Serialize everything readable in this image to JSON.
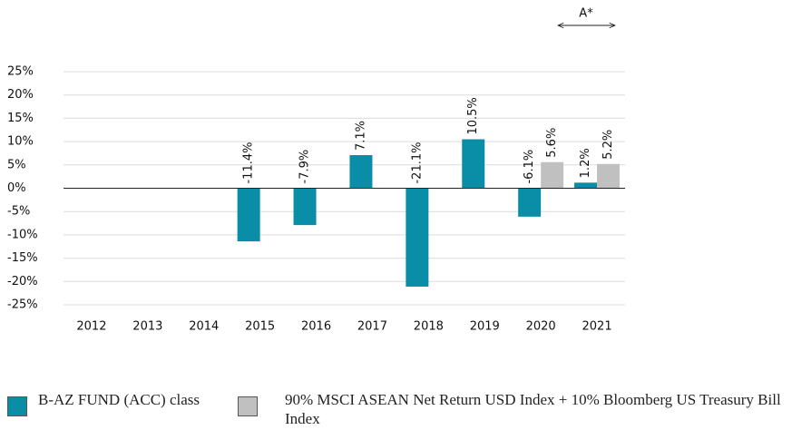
{
  "chart_data": {
    "type": "bar",
    "annotation": "A*",
    "categories": [
      "2012",
      "2013",
      "2014",
      "2015",
      "2016",
      "2017",
      "2018",
      "2019",
      "2020",
      "2021"
    ],
    "series": [
      {
        "name": "B-AZ FUND (ACC) class",
        "color": "#0a8ea8",
        "values": [
          null,
          null,
          null,
          -11.4,
          -7.9,
          7.1,
          -21.1,
          10.5,
          -6.1,
          1.2
        ],
        "value_labels": [
          null,
          null,
          null,
          "-11.4%",
          "-7.9%",
          "7.1%",
          "-21.1%",
          "10.5%",
          "-6.1%",
          "1.2%"
        ]
      },
      {
        "name": "90% MSCI ASEAN Net Return USD Index + 10% Bloomberg US Treasury Bill Index",
        "color": "#c0c0c0",
        "values": [
          null,
          null,
          null,
          null,
          null,
          null,
          null,
          null,
          5.6,
          5.2
        ],
        "value_labels": [
          null,
          null,
          null,
          null,
          null,
          null,
          null,
          null,
          "5.6%",
          "5.2%"
        ]
      }
    ],
    "ylim": [
      -25,
      25
    ],
    "yticks": [
      {
        "value": -25,
        "label": "-25%"
      },
      {
        "value": -20,
        "label": "-20%"
      },
      {
        "value": -15,
        "label": "-15%"
      },
      {
        "value": -10,
        "label": "-10%"
      },
      {
        "value": -5,
        "label": "-5%"
      },
      {
        "value": 0,
        "label": "0%"
      },
      {
        "value": 5,
        "label": "5%"
      },
      {
        "value": 10,
        "label": "10%"
      },
      {
        "value": 15,
        "label": "15%"
      },
      {
        "value": 20,
        "label": "20%"
      },
      {
        "value": 25,
        "label": "25%"
      }
    ],
    "grid": true
  }
}
